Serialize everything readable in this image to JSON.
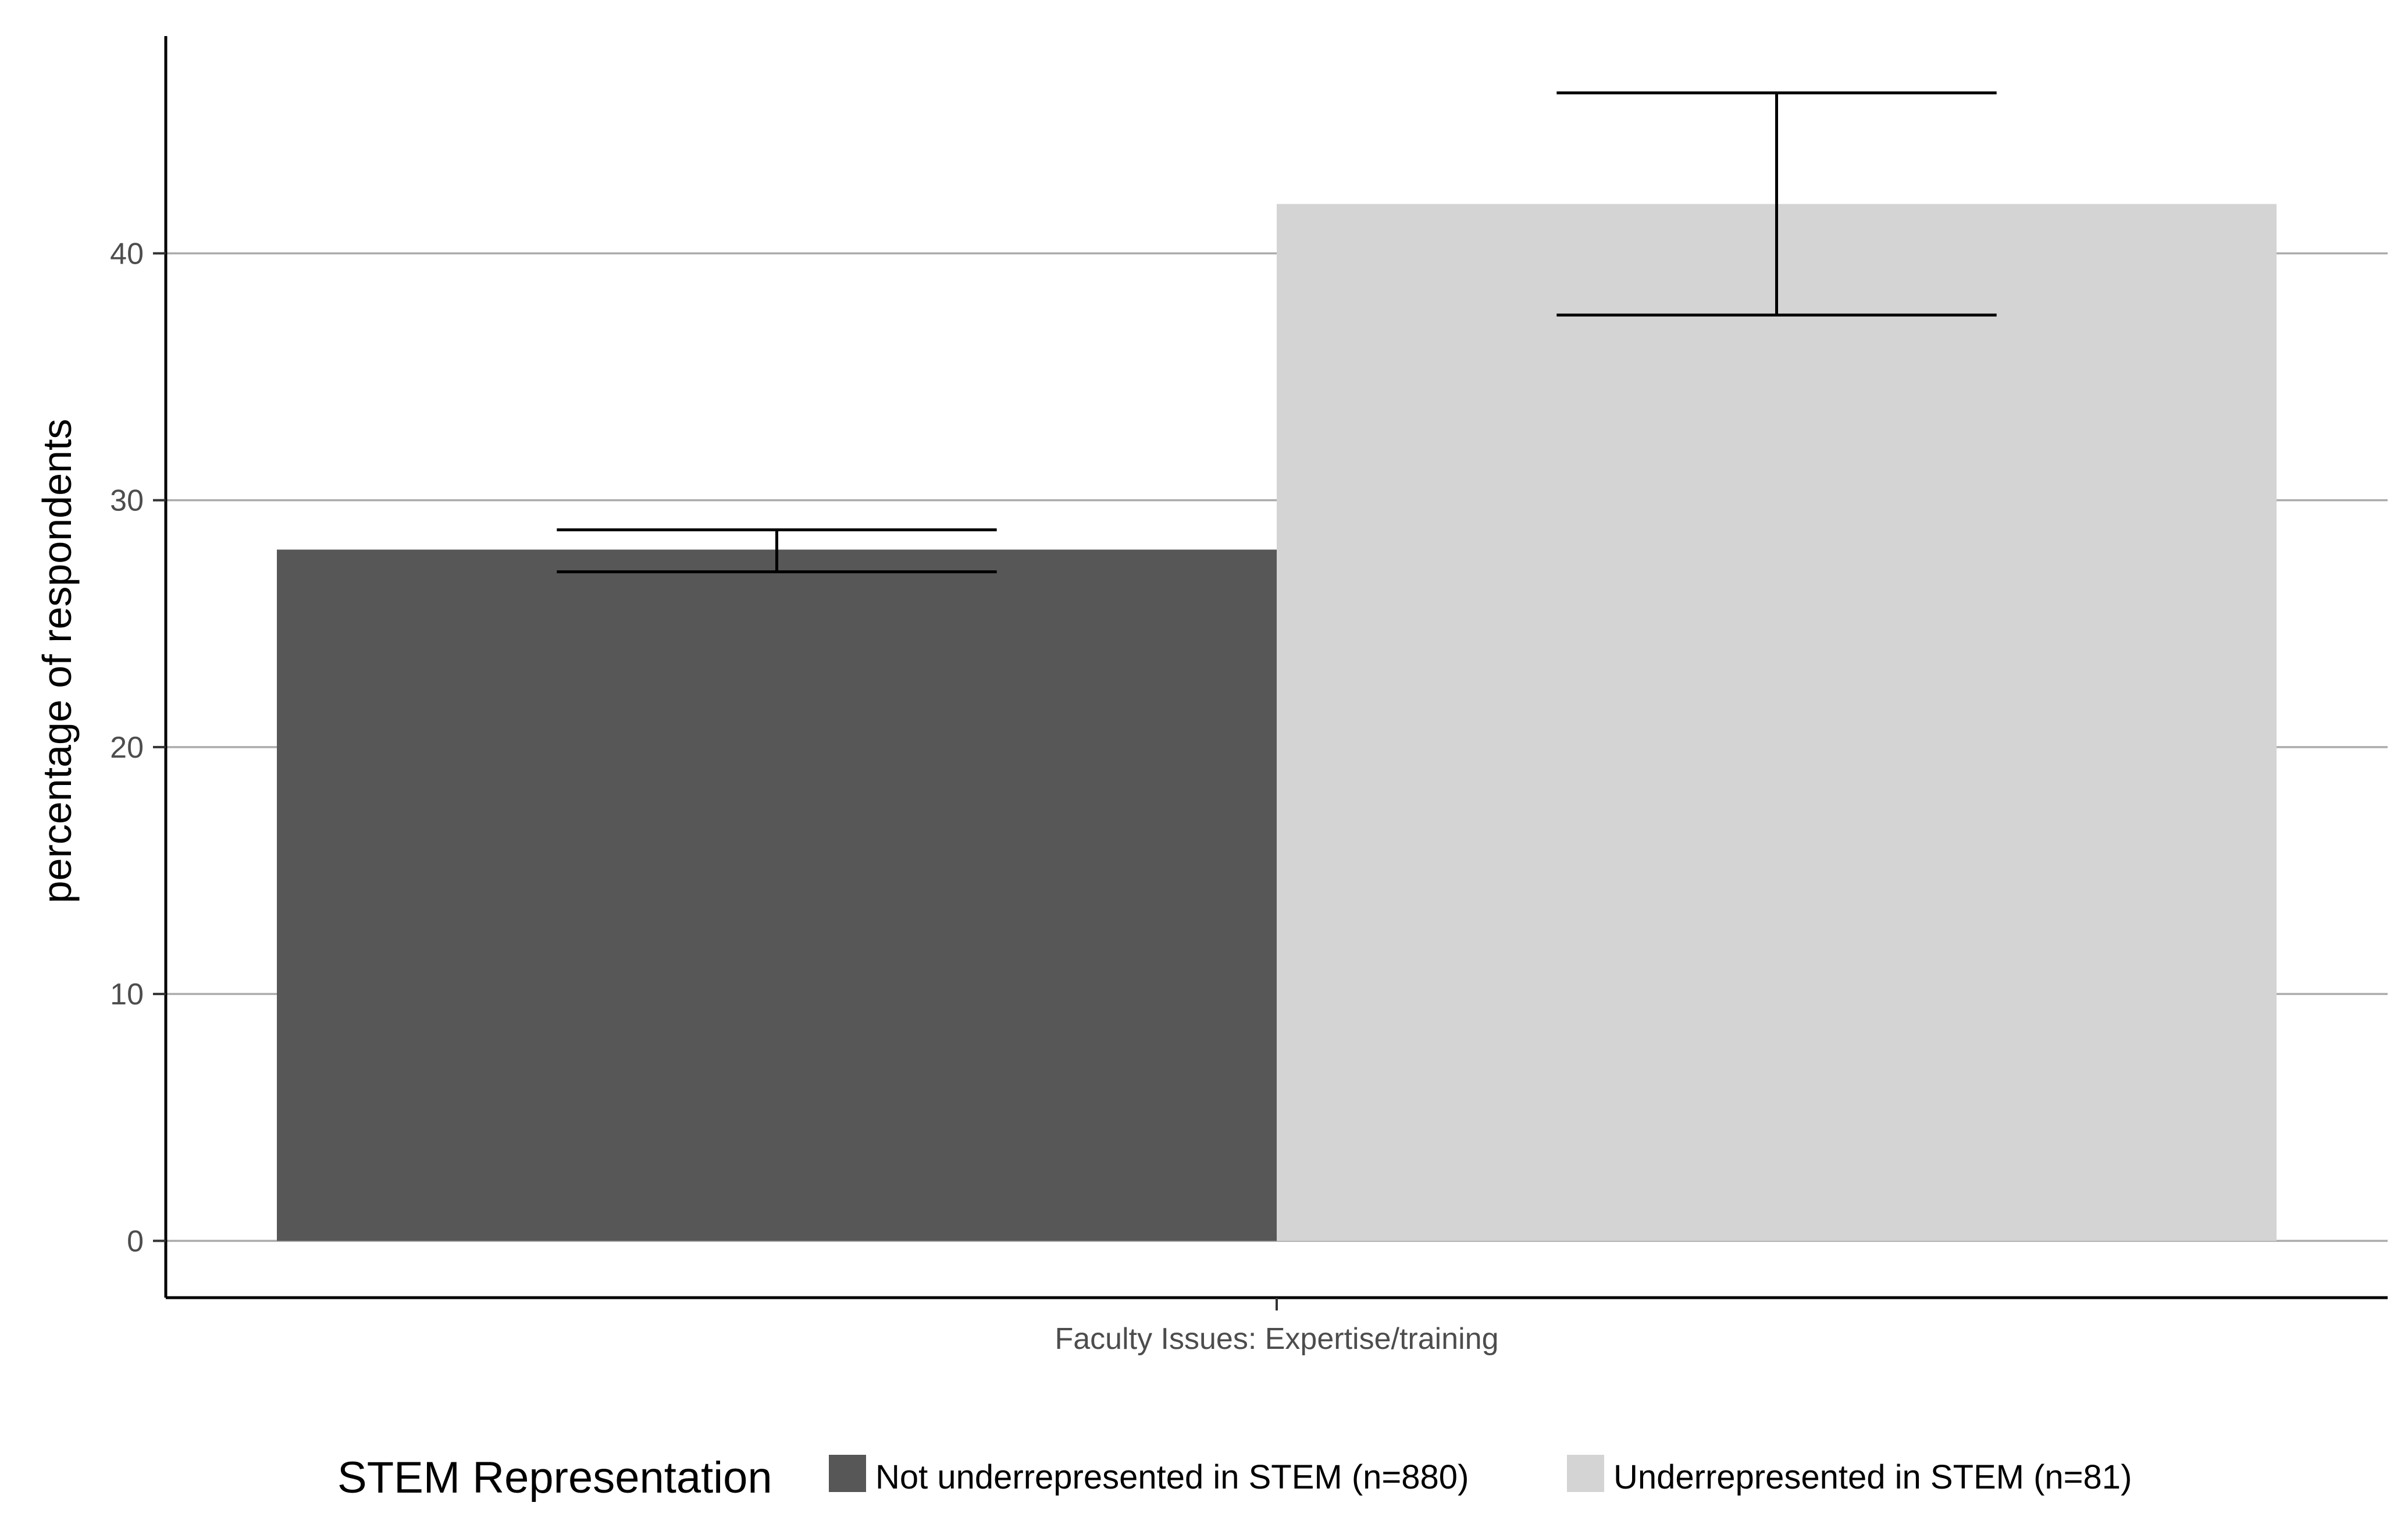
{
  "chart_data": {
    "type": "bar",
    "categories": [
      "Faculty Issues: Expertise/training"
    ],
    "series": [
      {
        "name": "Not underrepresented in STEM (n=880)",
        "values": [
          28.0
        ],
        "error_low": [
          27.1
        ],
        "error_high": [
          28.8
        ],
        "color": "#575757"
      },
      {
        "name": "Underrepresented in STEM (n=81)",
        "values": [
          42.0
        ],
        "error_low": [
          37.5
        ],
        "error_high": [
          46.5
        ],
        "color": "#d4d4d4"
      }
    ],
    "xlabel": "",
    "ylabel": "percentage of respondents",
    "ylim": [
      -2.3,
      48.8
    ],
    "yticks": [
      0,
      10,
      20,
      30,
      40
    ],
    "grid": "horizontal major",
    "legend": {
      "title": "STEM Representation",
      "placement": "bottom"
    }
  }
}
